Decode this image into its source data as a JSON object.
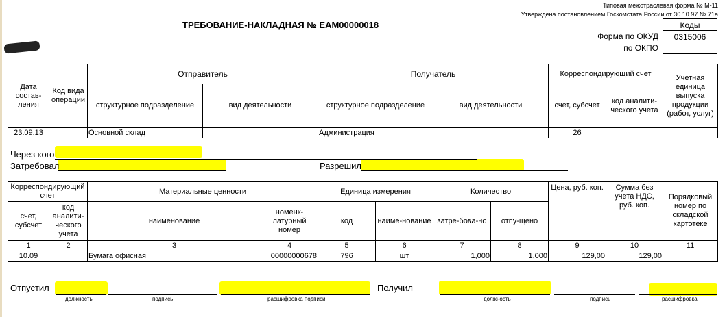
{
  "header": {
    "form_type": "Типовая межотраслевая форма № М-11",
    "approved": "Утверждена постановлением Госкомстата России от 30.10.97 № 71а",
    "title": "ТРЕБОВАНИЕ-НАКЛАДНАЯ № ЕАМ00000018",
    "codes_label": "Коды",
    "okud_label": "Форма по ОКУД",
    "okud_value": "0315006",
    "okpo_label": "по ОКПО",
    "okpo_value": ""
  },
  "table1": {
    "h_date": "Дата состав-ления",
    "h_op": "Код вида операции",
    "h_sender": "Отправитель",
    "h_receiver": "Получатель",
    "h_corr": "Корреспондирующий счет",
    "h_unit": "Учетная единица выпуска продукции (работ, услуг)",
    "h_struct1": "структурное подразделение",
    "h_act1": "вид деятельности",
    "h_struct2": "структурное подразделение",
    "h_act2": "вид деятельности",
    "h_acc": "счет, субсчет",
    "h_anal": "код аналити-ческого учета",
    "row": {
      "date": "23.09.13",
      "op": "",
      "sender_struct": "Основной склад",
      "sender_act": "",
      "receiver_struct": "Администрация",
      "receiver_act": "",
      "acc": "26",
      "anal": "",
      "unit": ""
    }
  },
  "people": {
    "through": "Через кого",
    "requested": "Затребовал",
    "allowed": "Разрешил"
  },
  "table2": {
    "h_corr": "Корреспондирующий счет",
    "h_mat": "Материальные ценности",
    "h_unit": "Единица измерения",
    "h_qty": "Количество",
    "h_price": "Цена, руб. коп.",
    "h_sum": "Сумма без учета НДС, руб. коп.",
    "h_order": "Порядковый номер по складской картотеке",
    "h_acc": "счет, субсчет",
    "h_anal": "код аналити-ческого учета",
    "h_name": "наименование",
    "h_nom": "номенк-латурный номер",
    "h_code": "код",
    "h_uname": "наиме-нование",
    "h_req": "затре-бова-но",
    "h_rel": "отпу-щено",
    "col_numbers": [
      "1",
      "2",
      "3",
      "4",
      "5",
      "6",
      "7",
      "8",
      "9",
      "10",
      "11"
    ],
    "rows": [
      {
        "acc": "10.09",
        "anal": "",
        "name": "Бумага офисная",
        "nom": "00000000678",
        "code": "796",
        "uname": "шт",
        "req": "1,000",
        "rel": "1,000",
        "price": "129,00",
        "sum": "129,00",
        "order": ""
      }
    ]
  },
  "footer": {
    "released": "Отпустил",
    "received": "Получил",
    "position": "должность",
    "signature": "подпись",
    "decode_sign": "расшифровка подписи",
    "decode": "расшифровка"
  },
  "colors": {
    "highlight": "#ffff00"
  }
}
